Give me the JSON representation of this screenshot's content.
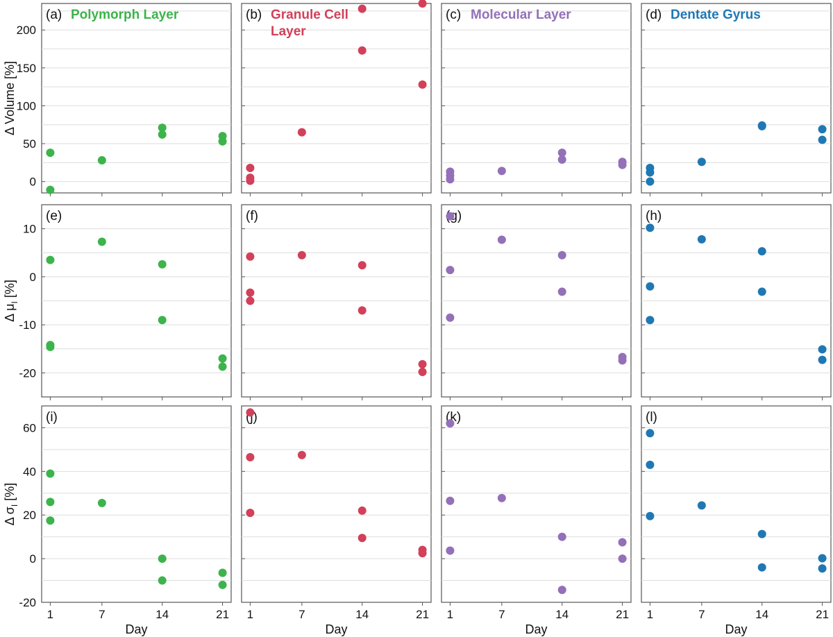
{
  "chart_data": [
    {
      "type": "scatter",
      "panel": "(a)",
      "title": "Polymorph Layer",
      "color": "#3cb44b",
      "ylabel": "Δ Volume [%]",
      "xlabel": "",
      "ylim": [
        -15,
        235
      ],
      "yticks": [
        0,
        50,
        100,
        150,
        200
      ],
      "xlim": [
        0,
        22
      ],
      "xticks": [
        1,
        7,
        14,
        21
      ],
      "grid": true,
      "points": [
        {
          "x": 1,
          "y": 38
        },
        {
          "x": 1,
          "y": -11
        },
        {
          "x": 7,
          "y": 28
        },
        {
          "x": 14,
          "y": 71
        },
        {
          "x": 14,
          "y": 62
        },
        {
          "x": 21,
          "y": 60
        },
        {
          "x": 21,
          "y": 53
        }
      ]
    },
    {
      "type": "scatter",
      "panel": "(b)",
      "title": "Granule Cell Layer",
      "color": "#d2405a",
      "ylabel": "",
      "xlabel": "",
      "ylim": [
        -15,
        235
      ],
      "yticks": [
        0,
        50,
        100,
        150,
        200
      ],
      "xlim": [
        0,
        22
      ],
      "xticks": [
        1,
        7,
        14,
        21
      ],
      "grid": true,
      "points": [
        {
          "x": 1,
          "y": 18
        },
        {
          "x": 1,
          "y": 5
        },
        {
          "x": 1,
          "y": 1
        },
        {
          "x": 7,
          "y": 65
        },
        {
          "x": 14,
          "y": 228
        },
        {
          "x": 14,
          "y": 173
        },
        {
          "x": 21,
          "y": 235
        },
        {
          "x": 21,
          "y": 128
        }
      ]
    },
    {
      "type": "scatter",
      "panel": "(c)",
      "title": "Molecular Layer",
      "color": "#9370b8",
      "ylabel": "",
      "xlabel": "",
      "ylim": [
        -15,
        235
      ],
      "yticks": [
        0,
        50,
        100,
        150,
        200
      ],
      "xlim": [
        0,
        22
      ],
      "xticks": [
        1,
        7,
        14,
        21
      ],
      "grid": true,
      "points": [
        {
          "x": 1,
          "y": 13
        },
        {
          "x": 1,
          "y": 8
        },
        {
          "x": 1,
          "y": 3
        },
        {
          "x": 7,
          "y": 14
        },
        {
          "x": 14,
          "y": 38
        },
        {
          "x": 14,
          "y": 29
        },
        {
          "x": 21,
          "y": 26
        },
        {
          "x": 21,
          "y": 22
        }
      ]
    },
    {
      "type": "scatter",
      "panel": "(d)",
      "title": "Dentate Gyrus",
      "color": "#1f78b4",
      "ylabel": "",
      "xlabel": "",
      "ylim": [
        -15,
        235
      ],
      "yticks": [
        0,
        50,
        100,
        150,
        200
      ],
      "xlim": [
        0,
        22
      ],
      "xticks": [
        1,
        7,
        14,
        21
      ],
      "grid": true,
      "points": [
        {
          "x": 1,
          "y": 18
        },
        {
          "x": 1,
          "y": 12
        },
        {
          "x": 1,
          "y": 0
        },
        {
          "x": 7,
          "y": 26
        },
        {
          "x": 14,
          "y": 74
        },
        {
          "x": 14,
          "y": 73
        },
        {
          "x": 21,
          "y": 69
        },
        {
          "x": 21,
          "y": 55
        }
      ]
    },
    {
      "type": "scatter",
      "panel": "(e)",
      "title": "",
      "color": "#3cb44b",
      "ylabel": "Δ μ",
      "ylabel_sub": "I",
      "ylabel_unit": " [%]",
      "xlabel": "",
      "ylim": [
        -25,
        15
      ],
      "yticks": [
        -20,
        -10,
        0,
        10
      ],
      "xlim": [
        0,
        22
      ],
      "xticks": [
        1,
        7,
        14,
        21
      ],
      "grid": true,
      "points": [
        {
          "x": 1,
          "y": 3.5
        },
        {
          "x": 1,
          "y": -14.2
        },
        {
          "x": 1,
          "y": -14.6
        },
        {
          "x": 7,
          "y": 7.3
        },
        {
          "x": 14,
          "y": 2.6
        },
        {
          "x": 14,
          "y": -9.0
        },
        {
          "x": 21,
          "y": -17.0
        },
        {
          "x": 21,
          "y": -18.7
        }
      ]
    },
    {
      "type": "scatter",
      "panel": "(f)",
      "title": "",
      "color": "#d2405a",
      "ylabel": "",
      "xlabel": "",
      "ylim": [
        -25,
        15
      ],
      "yticks": [
        -20,
        -10,
        0,
        10
      ],
      "xlim": [
        0,
        22
      ],
      "xticks": [
        1,
        7,
        14,
        21
      ],
      "grid": true,
      "points": [
        {
          "x": 1,
          "y": 4.2
        },
        {
          "x": 1,
          "y": -3.3
        },
        {
          "x": 1,
          "y": -5.0
        },
        {
          "x": 7,
          "y": 4.5
        },
        {
          "x": 14,
          "y": 2.4
        },
        {
          "x": 14,
          "y": -7.0
        },
        {
          "x": 21,
          "y": -18.2
        },
        {
          "x": 21,
          "y": -19.8
        }
      ]
    },
    {
      "type": "scatter",
      "panel": "(g)",
      "title": "",
      "color": "#9370b8",
      "ylabel": "",
      "xlabel": "",
      "ylim": [
        -25,
        15
      ],
      "yticks": [
        -20,
        -10,
        0,
        10
      ],
      "xlim": [
        0,
        22
      ],
      "xticks": [
        1,
        7,
        14,
        21
      ],
      "grid": true,
      "points": [
        {
          "x": 1,
          "y": 12.6
        },
        {
          "x": 1,
          "y": 1.4
        },
        {
          "x": 1,
          "y": -8.5
        },
        {
          "x": 7,
          "y": 7.7
        },
        {
          "x": 14,
          "y": 4.5
        },
        {
          "x": 14,
          "y": -3.1
        },
        {
          "x": 21,
          "y": -16.7
        },
        {
          "x": 21,
          "y": -17.4
        }
      ]
    },
    {
      "type": "scatter",
      "panel": "(h)",
      "title": "",
      "color": "#1f78b4",
      "ylabel": "",
      "xlabel": "",
      "ylim": [
        -25,
        15
      ],
      "yticks": [
        -20,
        -10,
        0,
        10
      ],
      "xlim": [
        0,
        22
      ],
      "xticks": [
        1,
        7,
        14,
        21
      ],
      "grid": true,
      "points": [
        {
          "x": 1,
          "y": 10.2
        },
        {
          "x": 1,
          "y": -2.0
        },
        {
          "x": 1,
          "y": -9.0
        },
        {
          "x": 7,
          "y": 7.8
        },
        {
          "x": 14,
          "y": 5.3
        },
        {
          "x": 14,
          "y": -3.1
        },
        {
          "x": 21,
          "y": -15.1
        },
        {
          "x": 21,
          "y": -17.3
        }
      ]
    },
    {
      "type": "scatter",
      "panel": "(i)",
      "title": "",
      "color": "#3cb44b",
      "ylabel": "Δ σ",
      "ylabel_sub": "I",
      "ylabel_unit": " [%]",
      "xlabel": "Day",
      "ylim": [
        -20,
        70
      ],
      "yticks": [
        -20,
        0,
        20,
        40,
        60
      ],
      "xlim": [
        0,
        22
      ],
      "xticks": [
        1,
        7,
        14,
        21
      ],
      "grid": true,
      "points": [
        {
          "x": 1,
          "y": 39
        },
        {
          "x": 1,
          "y": 26
        },
        {
          "x": 1,
          "y": 17.5
        },
        {
          "x": 7,
          "y": 25.5
        },
        {
          "x": 14,
          "y": 0
        },
        {
          "x": 14,
          "y": -10
        },
        {
          "x": 21,
          "y": -6.5
        },
        {
          "x": 21,
          "y": -12
        }
      ]
    },
    {
      "type": "scatter",
      "panel": "(j)",
      "title": "",
      "color": "#d2405a",
      "ylabel": "",
      "xlabel": "Day",
      "ylim": [
        -20,
        70
      ],
      "yticks": [
        -20,
        0,
        20,
        40,
        60
      ],
      "xlim": [
        0,
        22
      ],
      "xticks": [
        1,
        7,
        14,
        21
      ],
      "grid": true,
      "points": [
        {
          "x": 1,
          "y": 67
        },
        {
          "x": 1,
          "y": 46.5
        },
        {
          "x": 1,
          "y": 21
        },
        {
          "x": 7,
          "y": 47.5
        },
        {
          "x": 14,
          "y": 22
        },
        {
          "x": 14,
          "y": 9.5
        },
        {
          "x": 21,
          "y": 4
        },
        {
          "x": 21,
          "y": 2.5
        }
      ]
    },
    {
      "type": "scatter",
      "panel": "(k)",
      "title": "",
      "color": "#9370b8",
      "ylabel": "",
      "xlabel": "Day",
      "ylim": [
        -20,
        70
      ],
      "yticks": [
        -20,
        0,
        20,
        40,
        60
      ],
      "xlim": [
        0,
        22
      ],
      "xticks": [
        1,
        7,
        14,
        21
      ],
      "grid": true,
      "points": [
        {
          "x": 1,
          "y": 62
        },
        {
          "x": 1,
          "y": 26.5
        },
        {
          "x": 1,
          "y": 3.7
        },
        {
          "x": 7,
          "y": 27.8
        },
        {
          "x": 14,
          "y": 10
        },
        {
          "x": 14,
          "y": -14.3
        },
        {
          "x": 21,
          "y": 7.5
        },
        {
          "x": 21,
          "y": 0
        }
      ]
    },
    {
      "type": "scatter",
      "panel": "(l)",
      "title": "",
      "color": "#1f78b4",
      "ylabel": "",
      "xlabel": "Day",
      "ylim": [
        -20,
        70
      ],
      "yticks": [
        -20,
        0,
        20,
        40,
        60
      ],
      "xlim": [
        0,
        22
      ],
      "xticks": [
        1,
        7,
        14,
        21
      ],
      "grid": true,
      "points": [
        {
          "x": 1,
          "y": 57.5
        },
        {
          "x": 1,
          "y": 43
        },
        {
          "x": 1,
          "y": 19.5
        },
        {
          "x": 7,
          "y": 24.4
        },
        {
          "x": 14,
          "y": 11.3
        },
        {
          "x": 14,
          "y": -4.0
        },
        {
          "x": 21,
          "y": 0.2
        },
        {
          "x": 21,
          "y": -4.5
        }
      ]
    }
  ]
}
